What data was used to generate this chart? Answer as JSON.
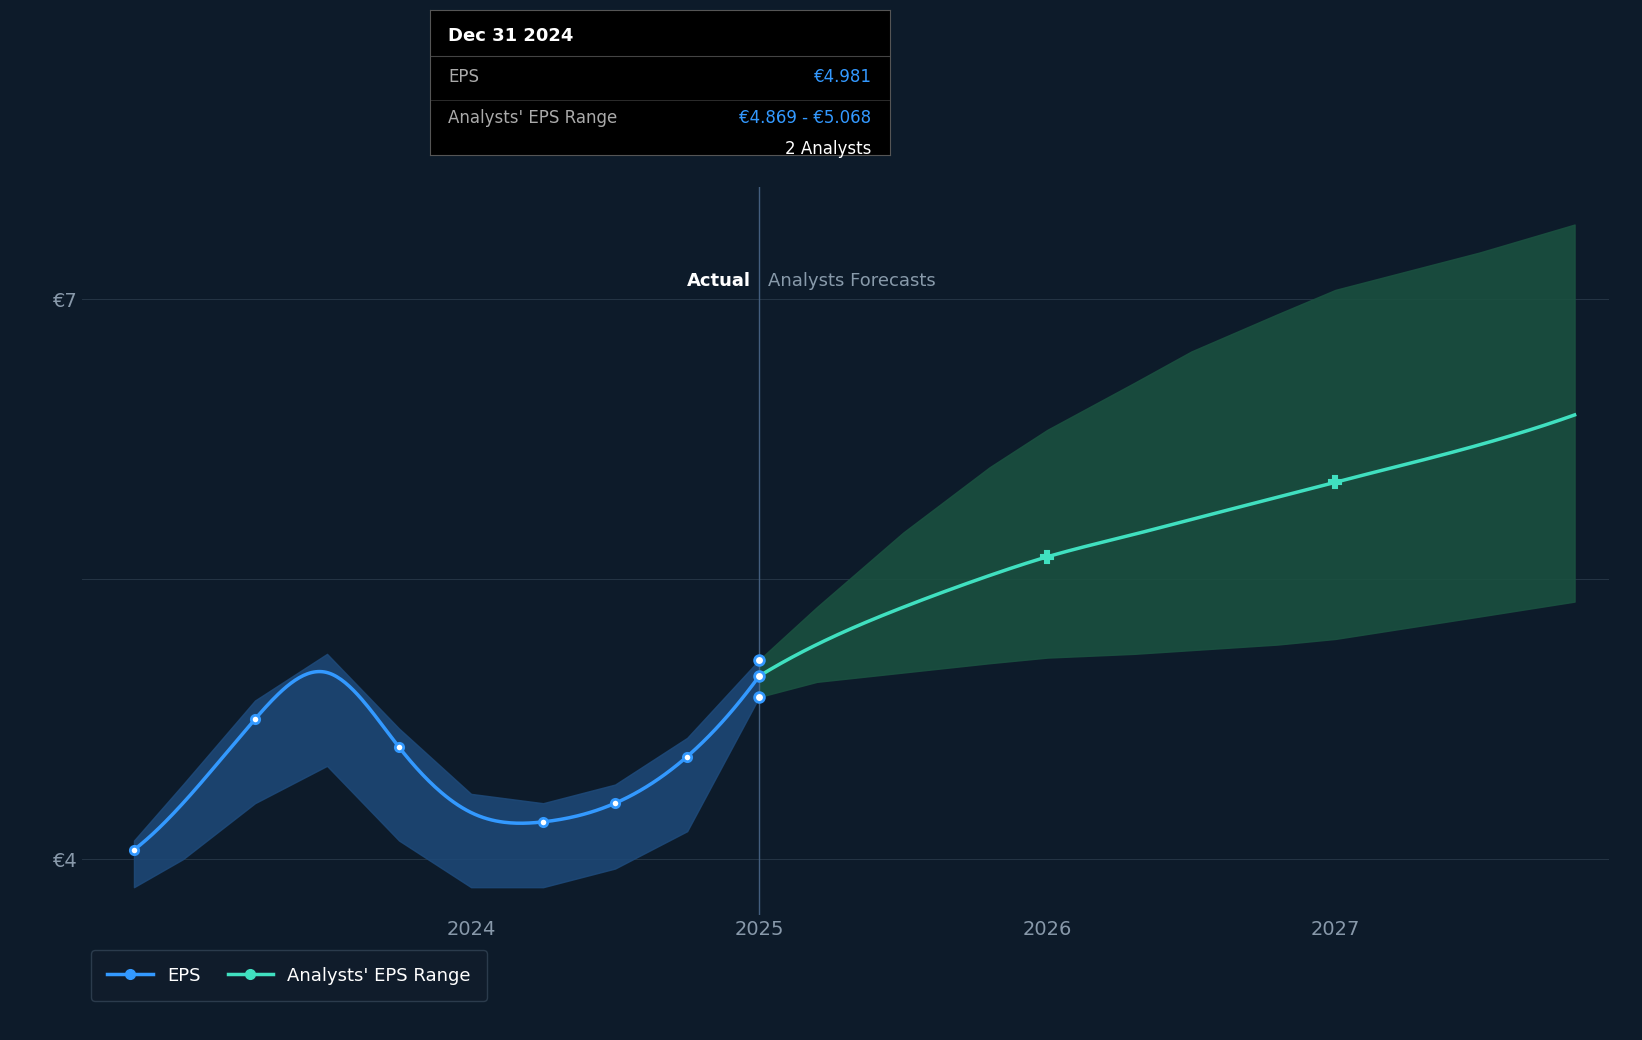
{
  "background_color": "#0d1b2a",
  "plot_bg_color": "#0d1b2a",
  "grid_color": "#253545",
  "actual_x": [
    2022.83,
    2023.0,
    2023.25,
    2023.5,
    2023.75,
    2024.0,
    2024.25,
    2024.5,
    2024.75,
    2025.0
  ],
  "actual_y": [
    4.05,
    4.3,
    4.75,
    5.0,
    4.6,
    4.25,
    4.2,
    4.3,
    4.55,
    4.981
  ],
  "actual_band_upper": [
    4.1,
    4.4,
    4.85,
    5.1,
    4.7,
    4.35,
    4.3,
    4.4,
    4.65,
    5.068
  ],
  "actual_band_lower": [
    3.85,
    4.0,
    4.3,
    4.5,
    4.1,
    3.85,
    3.85,
    3.95,
    4.15,
    4.869
  ],
  "forecast_x": [
    2025.0,
    2025.2,
    2025.5,
    2025.8,
    2026.0,
    2026.3,
    2026.5,
    2026.8,
    2027.0,
    2027.5,
    2027.83
  ],
  "forecast_y": [
    4.981,
    5.15,
    5.35,
    5.52,
    5.62,
    5.74,
    5.82,
    5.94,
    6.02,
    6.22,
    6.38
  ],
  "forecast_band_upper": [
    5.068,
    5.35,
    5.75,
    6.1,
    6.3,
    6.55,
    6.72,
    6.92,
    7.05,
    7.25,
    7.4
  ],
  "forecast_band_lower": [
    4.869,
    4.95,
    5.0,
    5.05,
    5.08,
    5.1,
    5.12,
    5.15,
    5.18,
    5.3,
    5.38
  ],
  "actual_line_color": "#3399ff",
  "actual_band_color": "#1e4a7a",
  "forecast_line_color": "#40e0c0",
  "forecast_band_color": "#1a5040",
  "vline_x": 2025.0,
  "vline_color": "#4a6688",
  "ylim_min": 3.7,
  "ylim_max": 7.6,
  "xlim_min": 2022.65,
  "xlim_max": 2027.95,
  "yticks": [
    4.0,
    5.5,
    7.0
  ],
  "ytick_labels": [
    "€4",
    "",
    "€7"
  ],
  "xticks": [
    2024.0,
    2025.0,
    2026.0,
    2027.0
  ],
  "xtick_labels": [
    "2024",
    "2025",
    "2026",
    "2027"
  ],
  "actual_label": "Actual",
  "forecast_label": "Analysts Forecasts",
  "divider_x": 2025.0,
  "tooltip_date": "Dec 31 2024",
  "tooltip_eps_label": "EPS",
  "tooltip_eps": "€4.981",
  "tooltip_range_label": "Analysts' EPS Range",
  "tooltip_range": "€4.869 - €5.068",
  "tooltip_analysts": "2 Analysts",
  "legend_eps_label": "EPS",
  "legend_range_label": "Analysts' EPS Range",
  "label_fontsize": 13,
  "tick_fontsize": 14,
  "legend_fontsize": 13,
  "tooltip_title_fontsize": 13,
  "tooltip_body_fontsize": 12
}
